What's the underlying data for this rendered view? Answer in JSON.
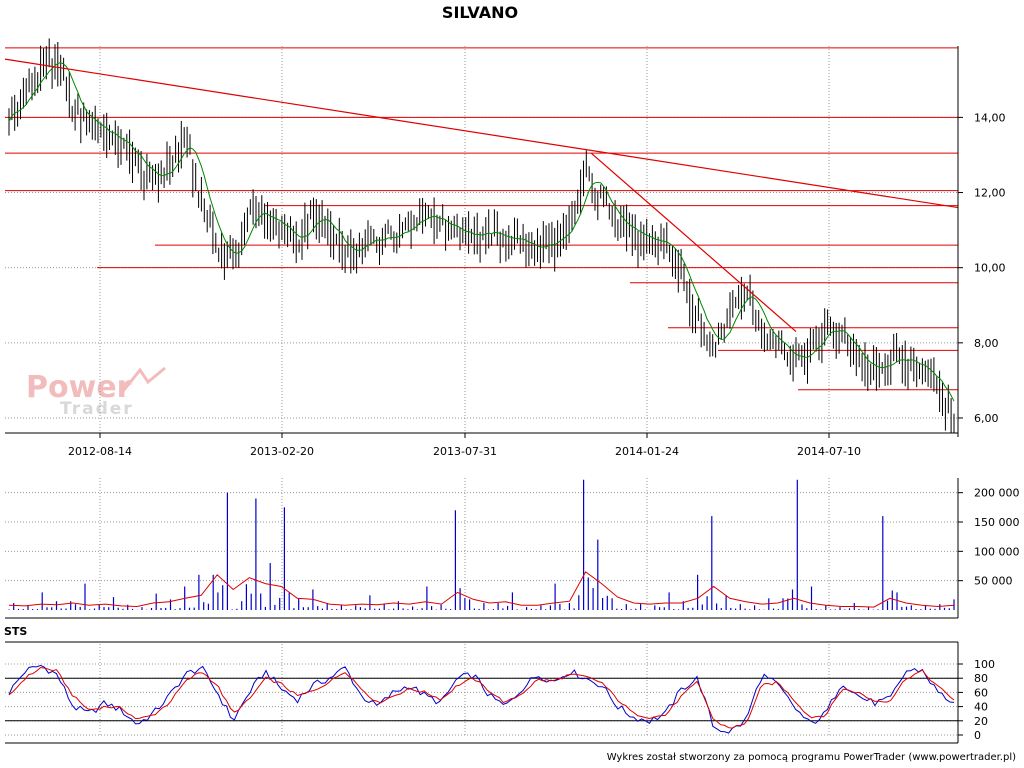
{
  "chart_data": [
    {
      "type": "candlestick",
      "title": "SILVANO",
      "x_ticks": [
        "2012-08-14",
        "2013-02-20",
        "2013-07-31",
        "2014-01-24",
        "2014-07-10"
      ],
      "y_ticks": [
        "6,00",
        "8,00",
        "10,00",
        "12,00",
        "14,00"
      ],
      "ylim": [
        5.6,
        15.9
      ],
      "grid": true,
      "close_series": [
        14.0,
        14.6,
        15.3,
        15.6,
        14.2,
        13.9,
        13.6,
        13.3,
        12.8,
        12.3,
        12.7,
        13.5,
        11.8,
        10.6,
        10.2,
        11.5,
        11.4,
        11.0,
        10.7,
        11.4,
        11.0,
        10.3,
        10.6,
        10.8,
        10.9,
        11.2,
        11.5,
        11.2,
        11.0,
        10.9,
        10.9,
        10.8,
        10.7,
        10.5,
        10.7,
        11.0,
        12.6,
        11.8,
        11.3,
        10.9,
        10.6,
        10.7,
        9.8,
        8.6,
        7.8,
        8.9,
        9.5,
        8.3,
        8.0,
        7.6,
        7.8,
        8.4,
        8.2,
        7.6,
        7.2,
        7.5,
        7.6,
        7.2,
        7.0,
        5.8
      ],
      "h_lines": [
        15.85,
        14.0,
        13.05,
        12.05,
        11.65,
        10.6,
        10.0,
        9.6,
        8.4,
        7.8,
        6.75
      ],
      "trend_lines": [
        {
          "from": [
            0,
            15.55
          ],
          "to": [
            1,
            11.6
          ]
        },
        {
          "from": [
            0.615,
            13.05
          ],
          "to": [
            0.83,
            8.3
          ]
        }
      ],
      "moving_average": "green"
    },
    {
      "type": "bar",
      "panel": "volume",
      "y_ticks": [
        "50 000",
        "100 000",
        "150 000",
        "200 000"
      ],
      "ylim": [
        0,
        225000
      ],
      "values": [
        12000,
        8000,
        30000,
        15000,
        45000,
        10000,
        22000,
        9000,
        5000,
        28000,
        18000,
        40000,
        60000,
        200000,
        15000,
        190000,
        80000,
        175000,
        20000,
        35000,
        12000,
        8000,
        25000,
        10000,
        15000,
        6000,
        40000,
        9000,
        170000,
        18000,
        12000,
        30000,
        5000,
        8000,
        45000,
        12000,
        222000,
        120000,
        20000,
        10000,
        8000,
        30000,
        15000,
        60000,
        160000,
        25000,
        10000,
        8000,
        20000,
        222000,
        40000,
        8000,
        5000,
        12000,
        6000,
        160000,
        30000,
        8000,
        10000,
        18000
      ],
      "average_values": [
        8000,
        7000,
        10000,
        9000,
        12000,
        8000,
        10000,
        7000,
        6000,
        12000,
        14000,
        20000,
        25000,
        60000,
        35000,
        55000,
        45000,
        40000,
        20000,
        18000,
        10000,
        8000,
        10000,
        9000,
        12000,
        10000,
        14000,
        10000,
        30000,
        18000,
        12000,
        14000,
        8000,
        8000,
        12000,
        15000,
        65000,
        45000,
        22000,
        12000,
        10000,
        12000,
        12000,
        20000,
        40000,
        20000,
        14000,
        10000,
        12000,
        20000,
        12000,
        8000,
        6000,
        6000,
        5000,
        20000,
        12000,
        8000,
        6000,
        8000
      ]
    },
    {
      "type": "line",
      "panel": "STS",
      "title": "STS",
      "y_ticks": [
        "0",
        "20",
        "40",
        "60",
        "80",
        "100"
      ],
      "ylim": [
        0,
        100
      ],
      "reference_lines": [
        20,
        80
      ],
      "series": [
        {
          "color": "#0000cc",
          "values": [
            60,
            90,
            98,
            85,
            40,
            30,
            45,
            35,
            15,
            30,
            55,
            85,
            95,
            60,
            20,
            60,
            90,
            65,
            50,
            70,
            80,
            95,
            55,
            40,
            60,
            70,
            55,
            45,
            80,
            85,
            55,
            40,
            65,
            85,
            75,
            90,
            80,
            70,
            40,
            25,
            20,
            30,
            65,
            80,
            10,
            5,
            20,
            85,
            70,
            40,
            15,
            30,
            75,
            55,
            45,
            50,
            90,
            92,
            60,
            45
          ]
        },
        {
          "color": "#dd0000",
          "values": [
            55,
            80,
            95,
            90,
            55,
            35,
            40,
            38,
            22,
            28,
            45,
            75,
            90,
            70,
            30,
            50,
            80,
            72,
            55,
            62,
            75,
            90,
            65,
            45,
            55,
            65,
            60,
            50,
            70,
            80,
            62,
            45,
            58,
            78,
            76,
            85,
            82,
            74,
            50,
            30,
            25,
            28,
            55,
            75,
            20,
            10,
            15,
            70,
            74,
            50,
            25,
            28,
            65,
            60,
            48,
            48,
            80,
            90,
            68,
            50
          ]
        }
      ]
    }
  ],
  "watermark": {
    "line1": "Power",
    "line2": "Trader"
  },
  "footer": "Wykres został stworzony za pomocą programu PowerTrader (www.powertrader.pl)",
  "colors": {
    "h_lines": "#e00000",
    "price": "#000000",
    "ma": "#008800",
    "volume": "#0000cc",
    "volume_avg": "#dd0000",
    "grid": "#999999",
    "watermark": "#f0b8b8"
  }
}
